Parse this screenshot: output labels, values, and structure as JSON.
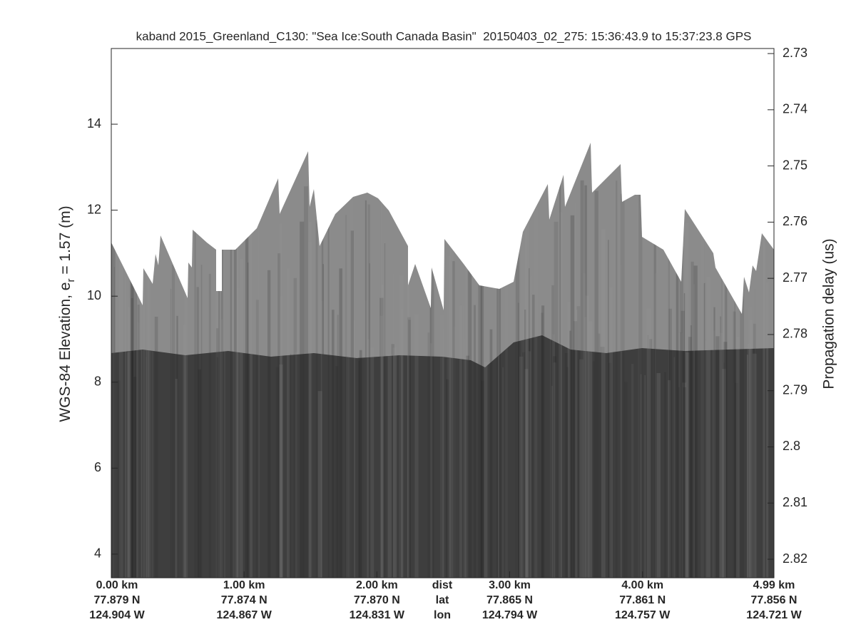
{
  "chart_data": {
    "type": "echogram",
    "title": "kaband 2015_Greenland_C130: \"Sea Ice:South Canada Basin\"  20150403_02_275: 15:36:43.9 to 15:37:23.8 GPS",
    "ylabel": [
      "WGS-84 Elevation, e",
      "r",
      " = 1.57 (m)"
    ],
    "y2label": "Propagation delay (us)",
    "ylim": [
      3.45,
      15.76
    ],
    "yticks": [
      4,
      6,
      8,
      10,
      12,
      14
    ],
    "y2lim": [
      2.8233,
      2.7291
    ],
    "y2ticks": [
      2.73,
      2.74,
      2.75,
      2.76,
      2.77,
      2.78,
      2.79,
      2.8,
      2.81,
      2.82
    ],
    "xlim": [
      0,
      4.99
    ],
    "xticks": [
      {
        "value": 0,
        "label": "0.00 km"
      },
      {
        "value": 1,
        "label": "1.00 km"
      },
      {
        "value": 2,
        "label": "2.00 km"
      },
      {
        "value": 3,
        "label": "3.00 km"
      },
      {
        "value": 4,
        "label": "4.00 km"
      },
      {
        "value": 4.99,
        "label": "4.99 km"
      }
    ],
    "xtick_lat": [
      "77.879 N",
      "77.874 N",
      "77.870 N",
      "77.865 N",
      "77.861 N",
      "77.856 N"
    ],
    "xtick_lon": [
      "124.904 W",
      "124.867 W",
      "124.831 W",
      "124.794 W",
      "124.757 W",
      "124.721 W"
    ],
    "xrow_names": [
      "dist",
      "lat",
      "lon"
    ]
  }
}
